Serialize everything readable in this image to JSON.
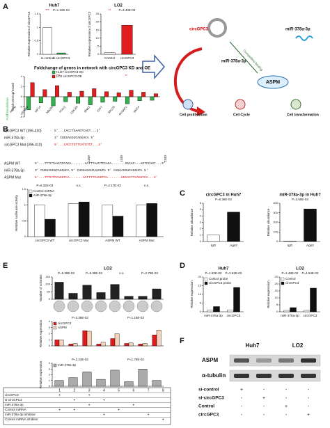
{
  "panels": [
    "A",
    "B",
    "C",
    "D",
    "E",
    "F"
  ],
  "charts": [
    {
      "type": "bar",
      "title": "Huh7",
      "ylabel": "Relative expression of circGPC3",
      "categories": [
        "si-control",
        "si-circGPC3"
      ],
      "series": [
        {
          "colors": [
            "#ffffff",
            "#2fb34a"
          ],
          "values": [
            1,
            0.05
          ]
        }
      ],
      "ylim": [
        0,
        1.5
      ],
      "yticks": [
        0,
        0.5,
        1,
        1.5
      ],
      "annotations": [
        "***",
        "P=1.12E-04"
      ]
    },
    {
      "type": "bar",
      "title": "LO2",
      "ylabel": "Relative expression of circGPC3",
      "categories": [
        "Control",
        "circGPC3"
      ],
      "series": [
        {
          "colors": [
            "#ffffff",
            "#e31d1d"
          ],
          "values": [
            1,
            18
          ]
        }
      ],
      "ylim": [
        0,
        25
      ],
      "yticks": [
        0,
        5,
        10,
        15,
        20,
        25
      ],
      "annotations": [
        "**",
        "P=4.40E-03"
      ]
    },
    {
      "type": "bar",
      "title": "Foldchange of genes in network with circGPC3 KD and OE",
      "ylabel": "Fold overexpressed",
      "ylabel2": "Fold knockdown",
      "categories": [
        "ASPM",
        "CENPW",
        "KIF14",
        "NDC80",
        "POLQ",
        "CDCA8",
        "DNA2",
        "E2F7",
        "SPC25",
        "NUSAP1",
        "SMC4"
      ],
      "series": [
        {
          "name": "Huh7 circGPC3 KD",
          "color": "#2fb34a",
          "values": [
            -2.6,
            -1.2,
            -1.8,
            -1.0,
            -1.3,
            -1.6,
            -1.1,
            -0.9,
            -1.4,
            -0.8,
            -0.7
          ]
        },
        {
          "name": "LO2 circGPC3 OE",
          "color": "#e31d1d",
          "values": [
            2.8,
            1.4,
            2.2,
            0.9,
            1.1,
            1.6,
            1.0,
            0.8,
            1.3,
            0.9,
            0.6
          ]
        }
      ],
      "ylim": [
        -4,
        4
      ],
      "yticks": [
        -4,
        -2,
        0,
        2,
        4
      ],
      "annotations": [
        "***",
        "**"
      ]
    },
    {
      "type": "bar",
      "ylabel": "Relative luciferase activity",
      "categories": [
        "circGPC3 WT",
        "circGPC3 Mut",
        "ASPM WT",
        "ASPM Mut"
      ],
      "series": [
        {
          "name": "Control miRNA",
          "color": "#ffffff",
          "values": [
            1,
            1.05,
            1,
            1
          ]
        },
        {
          "name": "miR-378a-3p",
          "color": "#111111",
          "values": [
            0.55,
            1.1,
            0.65,
            1.05
          ]
        }
      ],
      "ylim": [
        0,
        1.5
      ],
      "yticks": [
        0,
        0.5,
        1,
        1.5
      ],
      "annotations": [
        "P=5.32E-03",
        "n.s.",
        "P=2.17E-03",
        "n.s."
      ]
    },
    {
      "type": "bar",
      "title": "circGPC3 in Huh7",
      "ylabel": "Relative abundance",
      "categories": [
        "IgG",
        "Ago2"
      ],
      "series": [
        {
          "colors": [
            "#ffffff",
            "#111111"
          ],
          "values": [
            1,
            4.6
          ]
        }
      ],
      "ylim": [
        0,
        6
      ],
      "yticks": [
        0,
        1,
        2,
        3,
        4,
        5,
        6
      ],
      "annotations": [
        "P=6.39E-03"
      ]
    },
    {
      "type": "bar",
      "title": "miR-378a-3p in Huh7",
      "ylabel": "Relative abundance",
      "categories": [
        "IgG",
        "Ago2"
      ],
      "series": [
        {
          "colors": [
            "#ffffff",
            "#111111"
          ],
          "values": [
            5,
            340
          ]
        }
      ],
      "ylim": [
        0,
        400
      ],
      "yticks": [
        0,
        100,
        200,
        300,
        400
      ],
      "annotations": [
        "P=3.58E-03"
      ]
    },
    {
      "type": "bar",
      "title": "Huh7",
      "ylabel": "Relative expression",
      "categories": [
        "miR-378a-3p",
        "circGPC3"
      ],
      "series": [
        {
          "name": "Control probe",
          "color": "#ffffff",
          "values": [
            1,
            1
          ]
        },
        {
          "name": "circGPC3 probe",
          "color": "#111111",
          "values": [
            3,
            14
          ]
        }
      ],
      "ylim": [
        0,
        20
      ],
      "yticks": [
        0,
        5,
        10,
        15,
        20
      ],
      "annotations": [
        "P=1.82E-02",
        "P=2.62E-02"
      ]
    },
    {
      "type": "bar",
      "title": "LO2",
      "ylabel": "Relative expression",
      "categories": [
        "miR-378a-3p",
        "circGPC3"
      ],
      "series": [
        {
          "name": "Control",
          "color": "#ffffff",
          "values": [
            1,
            1
          ]
        },
        {
          "name": "circGPC3",
          "color": "#111111",
          "values": [
            3,
            17
          ]
        }
      ],
      "ylim": [
        0,
        25
      ],
      "yticks": [
        0,
        5,
        10,
        15,
        20,
        25
      ],
      "annotations": [
        "P=1.48E-02",
        "P=4.94E-02"
      ]
    },
    {
      "type": "bar",
      "title": "LO2",
      "ylabel": "Number of colonies",
      "categories": [
        null,
        null,
        null,
        null,
        null,
        null,
        null,
        null
      ],
      "series": [
        {
          "color": "#222222",
          "values": [
            115,
            40,
            95,
            45,
            100,
            20,
            20,
            70
          ]
        }
      ],
      "ylim": [
        0,
        150
      ],
      "yticks": [
        0,
        50,
        100,
        150
      ],
      "annotations": [
        "P=5.38E-03",
        "P=5.38E-03",
        "n.s.",
        "P=2.79E-03"
      ]
    },
    {
      "type": "bar",
      "ylabel": "Relative expression",
      "categories": [
        null,
        null,
        null,
        null,
        null,
        null,
        null,
        null
      ],
      "series": [
        {
          "name": "circGPC3",
          "color": "#e31d1d",
          "values": [
            1,
            0.3,
            2.5,
            0.3,
            1.2,
            0.4,
            0.3,
            1.8
          ]
        },
        {
          "name": "ASPM",
          "color": "#f6d2b8",
          "values": [
            1,
            0.4,
            2.4,
            0.6,
            2,
            0.5,
            0.4,
            2.6
          ]
        }
      ],
      "ylim": [
        0,
        4
      ],
      "yticks": [
        0,
        1,
        2,
        3,
        4
      ],
      "annotations": [
        "P=3.38E-02",
        "P=1.19E-03"
      ]
    },
    {
      "type": "bar",
      "ylabel": "Relative expression",
      "categories": [
        null,
        null,
        null,
        null,
        null,
        null,
        null,
        null
      ],
      "series": [
        {
          "name": "miR-378a-3p",
          "color": "#aaaaaa",
          "values": [
            1,
            1.5,
            2.5,
            1.2,
            2.8,
            0.8,
            3,
            1
          ]
        }
      ],
      "ylim": [
        0,
        4
      ],
      "yticks": [
        0,
        1,
        2,
        3,
        4
      ],
      "annotations": [
        "P=2.23E-02",
        "P=1.79E-02"
      ]
    }
  ],
  "diagram": {
    "circ": "circGPC3",
    "mir": "miR-378a-3p",
    "mir2": "miR-378a-3p",
    "aspm": "ASPM",
    "binding": "Competitive binding",
    "outcomes": [
      "Cell proliferation",
      "Cell Cycle",
      "Cell transformation"
    ]
  },
  "sequences": {
    "positions": [
      "1159",
      "1349",
      "2343"
    ],
    "lines": [
      {
        "label": "circGPC3 WT (396-410)",
        "seq": "5'...CACCTGAAGTCAGT...3'"
      },
      {
        "label": "miR-378a-3p",
        "seq": "3' CUGGAGGUCAGGUCA 5'"
      },
      {
        "label": "circGPC3 Mut (396-410)",
        "seq": "5'...CACCTGTTCATGTCT...3'"
      },
      {
        "label": "ASPM WT",
        "seq": "5'...TTTCTAAGTCCAGA.......AATTTAACTCCAGA.......GGCAC---AGTCCAGT...3'"
      },
      {
        "label": "miR-378a-3p",
        "seq": "3' CUGGAGGUCAGGUCA 5' CUGGAGGUCAGGUCA 5' CUGGAGGUCAGGUCA 5'"
      },
      {
        "label": "ASPM Mut",
        "seq": "5'...TTTCTTCAGGTCA.......AATTTTCAGGTCA.......GGCACTTCAGGTCA...3'"
      }
    ]
  },
  "table": {
    "columns": [
      "1",
      "2",
      "3",
      "4",
      "5",
      "6",
      "7",
      "8"
    ],
    "rows": [
      {
        "label": "circGPC3",
        "cells": [
          "+",
          null,
          "+",
          null,
          null,
          null,
          null,
          null
        ]
      },
      {
        "label": "si-circGPC3",
        "cells": [
          null,
          "+",
          null,
          "+",
          null,
          null,
          null,
          null
        ]
      },
      {
        "label": "miR-378a-3p",
        "cells": [
          null,
          null,
          "+",
          null,
          null,
          "+",
          null,
          null
        ]
      },
      {
        "label": "Control miRNA",
        "cells": [
          "+",
          "+",
          null,
          null,
          "+",
          null,
          null,
          null
        ]
      },
      {
        "label": "miR-378a-3p inhibitor",
        "cells": [
          null,
          null,
          null,
          "+",
          null,
          null,
          "+",
          null
        ]
      },
      {
        "label": "Control miRNA inhibitor",
        "cells": [
          null,
          null,
          null,
          null,
          null,
          null,
          null,
          "+"
        ]
      }
    ]
  },
  "blot": {
    "cells": [
      "Huh7",
      "LO2"
    ],
    "proteins": [
      "ASPM",
      "α-tubulin"
    ],
    "rows": [
      {
        "label": "si-control",
        "cells": [
          "+",
          "-",
          "-",
          "-"
        ]
      },
      {
        "label": "si-circGPC3",
        "cells": [
          "-",
          "+",
          "-",
          "-"
        ]
      },
      {
        "label": "Control",
        "cells": [
          "-",
          "-",
          "+",
          "-"
        ]
      },
      {
        "label": "circGPC3",
        "cells": [
          "-",
          "-",
          "-",
          "+"
        ]
      }
    ]
  }
}
